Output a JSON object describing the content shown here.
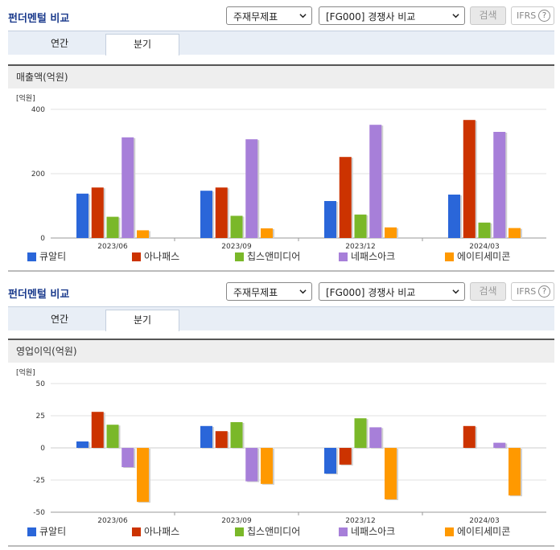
{
  "colors": {
    "series": [
      "#2a66d9",
      "#cc3300",
      "#7ab829",
      "#a77fd9",
      "#ff9900"
    ],
    "grid": "#e2e2e2",
    "axis": "#999999"
  },
  "panels": [
    {
      "header": {
        "title": "펀더멘털 비교",
        "select1": "주재무제표",
        "select2": "[FG000] 경쟁사 비교",
        "search_label": "검색",
        "ifrs_label": "IFRS",
        "help_label": "?"
      },
      "tabs": [
        "연간",
        "분기"
      ],
      "section_title": "매출액(억원)"
    },
    {
      "header": {
        "title": "펀더멘털 비교",
        "select1": "주재무제표",
        "select2": "[FG000] 경쟁사 비교",
        "search_label": "검색",
        "ifrs_label": "IFRS",
        "help_label": "?"
      },
      "tabs": [
        "연간",
        "분기"
      ],
      "section_title": "영업이익(억원)"
    }
  ],
  "chart_data": [
    {
      "type": "bar",
      "ylabel": "[억원]",
      "ylim": [
        0,
        400
      ],
      "yticks": [
        0,
        200,
        400
      ],
      "grid": true,
      "legend": "bottom",
      "categories": [
        "2023/06",
        "2023/09",
        "2023/12",
        "2024/03"
      ],
      "series": [
        {
          "name": "큐알티",
          "values": [
            138,
            147,
            115,
            135
          ]
        },
        {
          "name": "아나패스",
          "values": [
            157,
            157,
            252,
            367
          ]
        },
        {
          "name": "칩스앤미디어",
          "values": [
            66,
            69,
            73,
            48
          ]
        },
        {
          "name": "네패스아크",
          "values": [
            313,
            307,
            352,
            330
          ]
        },
        {
          "name": "에이티세미콘",
          "values": [
            24,
            30,
            33,
            31
          ]
        }
      ]
    },
    {
      "type": "bar",
      "ylabel": "[억원]",
      "ylim": [
        -50,
        50
      ],
      "yticks": [
        -50,
        -25,
        0,
        25,
        50
      ],
      "grid": true,
      "legend": "bottom",
      "categories": [
        "2023/06",
        "2023/09",
        "2023/12",
        "2024/03"
      ],
      "series": [
        {
          "name": "큐알티",
          "values": [
            5,
            17,
            -20,
            null
          ]
        },
        {
          "name": "아나패스",
          "values": [
            28,
            13,
            -13,
            17
          ]
        },
        {
          "name": "칩스앤미디어",
          "values": [
            18,
            20,
            23,
            null
          ]
        },
        {
          "name": "네패스아크",
          "values": [
            -15,
            -26,
            16,
            4
          ]
        },
        {
          "name": "에이티세미콘",
          "values": [
            -42,
            -28,
            -40,
            -37
          ]
        }
      ]
    }
  ]
}
